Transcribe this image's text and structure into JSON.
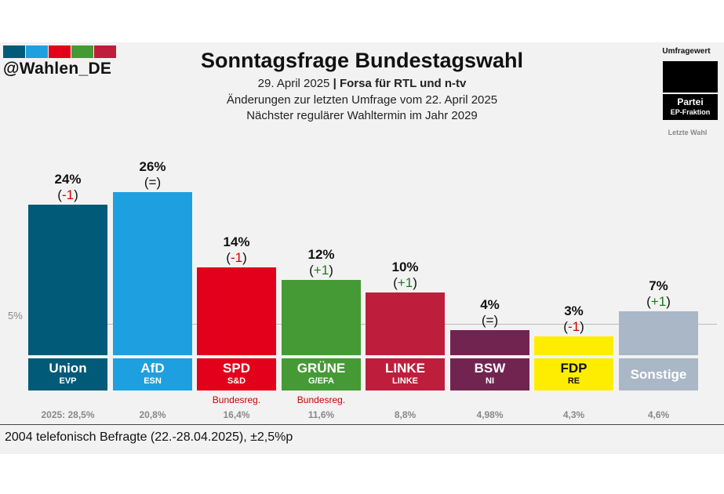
{
  "header": {
    "handle": "@Wahlen_DE",
    "title": "Sonntagsfrage Bundestagswahl",
    "date": "29. April 2025",
    "separator": "|",
    "institute": "Forsa für RTL und n-tv",
    "changes_note": "Änderungen zur letzten Umfrage vom 22. April 2025",
    "next_election": "Nächster regulärer Wahltermin im Jahr 2029",
    "logo_colors": [
      "#005a78",
      "#1ea0e0",
      "#e3001b",
      "#469a35",
      "#be1e3c"
    ]
  },
  "legend": {
    "title": "Umfragewert",
    "party": "Partei",
    "fraction": "EP-Fraktion",
    "last_election": "Letzte Wahl"
  },
  "footer": {
    "text": "2004 telefonisch Befragte (22.-28.04.2025), ±2,5%p"
  },
  "chart_data": {
    "type": "bar",
    "title": "Sonntagsfrage Bundestagswahl",
    "ylim": [
      0,
      30
    ],
    "threshold": {
      "value": 5,
      "label": "5%"
    },
    "categories": [
      "Union",
      "AfD",
      "SPD",
      "GRÜNE",
      "LINKE",
      "BSW",
      "FDP",
      "Sonstige"
    ],
    "values": [
      24,
      26,
      14,
      12,
      10,
      4,
      3,
      7
    ],
    "value_labels": [
      "24%",
      "26%",
      "14%",
      "12%",
      "10%",
      "4%",
      "3%",
      "7%"
    ],
    "change_values": [
      "-1",
      "=",
      "-1",
      "+1",
      "+1",
      "=",
      "-1",
      "+1"
    ],
    "fractions": [
      "EVP",
      "ESN",
      "S&D",
      "G/EFA",
      "LINKE",
      "NI",
      "RE",
      ""
    ],
    "government": [
      "",
      "",
      "Bundesreg.",
      "Bundesreg.",
      "",
      "",
      "",
      ""
    ],
    "last_election": [
      "2025: 28,5%",
      "20,8%",
      "16,4%",
      "11,6%",
      "8,8%",
      "4,98%",
      "4,3%",
      "4,6%"
    ],
    "colors": [
      "#005a78",
      "#1ea0e0",
      "#e3001b",
      "#469a35",
      "#be1e3c",
      "#722451",
      "#ffed00",
      "#a9b7c7"
    ],
    "name_colors": [
      "#ffffff",
      "#ffffff",
      "#ffffff",
      "#ffffff",
      "#ffffff",
      "#ffffff",
      "#111111",
      "#ffffff"
    ],
    "change_colors": {
      "up": "#1a7a1a",
      "down": "#d40000",
      "same": "#111111"
    }
  }
}
